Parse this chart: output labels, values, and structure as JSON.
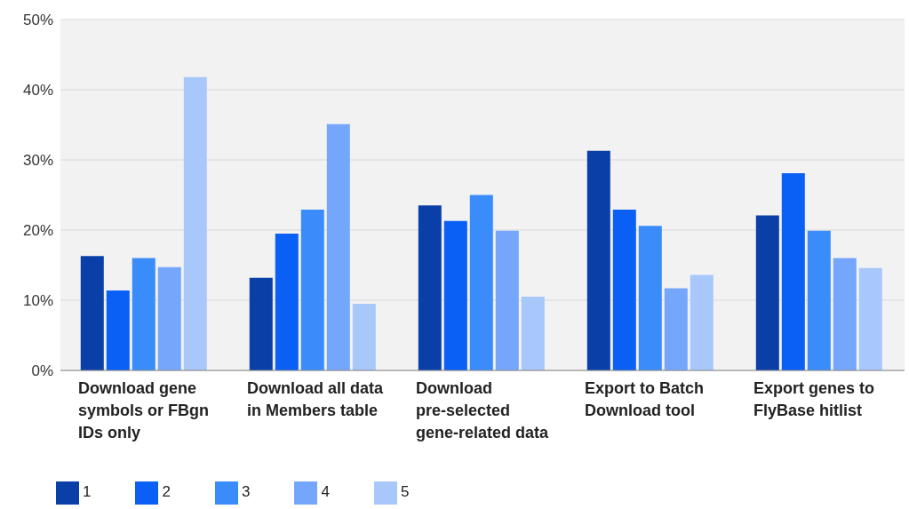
{
  "chart_data": {
    "type": "bar",
    "categories": [
      "Download gene symbols or FBgn IDs only",
      "Download all data in Members table",
      "Download pre-selected gene-related data",
      "Export to Batch Download tool",
      "Export genes to FlyBase hitlist"
    ],
    "series": [
      {
        "name": "1",
        "color": "#0a3fa8",
        "values": [
          16.3,
          13.2,
          23.5,
          31.3,
          22.1
        ]
      },
      {
        "name": "2",
        "color": "#0a5ff5",
        "values": [
          11.4,
          19.5,
          21.3,
          22.9,
          28.1
        ]
      },
      {
        "name": "3",
        "color": "#3b8cfb",
        "values": [
          16,
          22.9,
          25,
          20.6,
          19.9
        ]
      },
      {
        "name": "4",
        "color": "#74a6fb",
        "values": [
          14.7,
          35.1,
          19.9,
          11.7,
          16
        ]
      },
      {
        "name": "5",
        "color": "#a8c8fb",
        "values": [
          41.8,
          9.5,
          10.5,
          13.6,
          14.6
        ]
      }
    ],
    "ylim": [
      0,
      50
    ],
    "yticks": [
      {
        "value": 0,
        "label": "0%"
      },
      {
        "value": 10,
        "label": "10%"
      },
      {
        "value": 20,
        "label": "20%"
      },
      {
        "value": 30,
        "label": "30%"
      },
      {
        "value": 40,
        "label": "40%"
      },
      {
        "value": 50,
        "label": "50%"
      }
    ],
    "grid": "y",
    "legend": "bottom left"
  }
}
